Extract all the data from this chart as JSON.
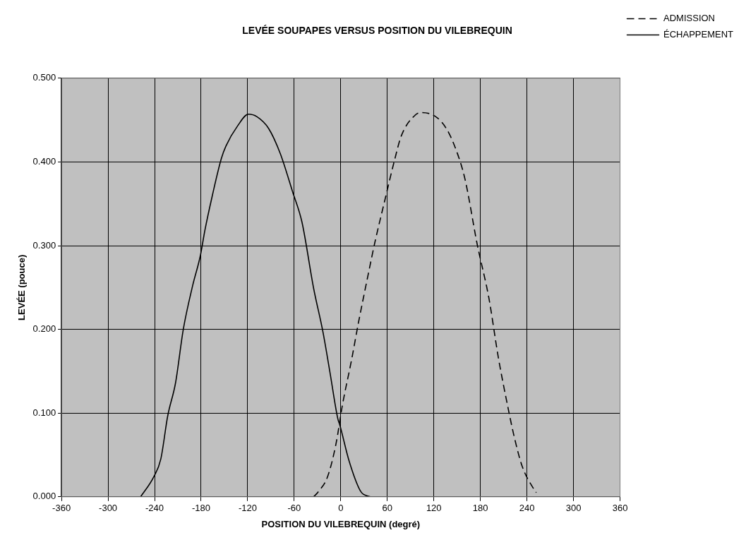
{
  "chart_data": {
    "type": "line",
    "title": "LEVÉE SOUPAPES VERSUS POSITION DU VILEBREQUIN",
    "xlabel": "POSITION DU VILEBREQUIN (degré)",
    "ylabel": "LEVÉE (pouce)",
    "xlim": [
      -360,
      360
    ],
    "xticks": [
      -360,
      -300,
      -240,
      -180,
      -120,
      -60,
      0,
      60,
      120,
      180,
      240,
      300,
      360
    ],
    "ylim": [
      0,
      0.5
    ],
    "yticks": [
      {
        "value": 0,
        "label": "0.000"
      },
      {
        "value": 0.1,
        "label": "0.100"
      },
      {
        "value": 0.2,
        "label": "0.200"
      },
      {
        "value": 0.3,
        "label": "0.300"
      },
      {
        "value": 0.4,
        "label": "0.400"
      },
      {
        "value": 0.5,
        "label": "0.500"
      }
    ],
    "grid": true,
    "legend": "right",
    "marker": "none",
    "series": [
      {
        "name": "ADMISSION",
        "color": "#000000",
        "line_style": "dashed",
        "x": [
          -35,
          -29,
          -17,
          -6,
          2,
          14,
          23,
          35,
          44,
          57,
          69,
          78,
          96,
          105,
          124,
          136,
          148,
          160,
          176,
          191,
          203,
          215,
          224,
          234,
          249,
          252
        ],
        "values": [
          0,
          0.006,
          0.024,
          0.064,
          0.109,
          0.164,
          0.209,
          0.264,
          0.304,
          0.355,
          0.401,
          0.431,
          0.456,
          0.459,
          0.453,
          0.44,
          0.416,
          0.38,
          0.301,
          0.237,
          0.167,
          0.109,
          0.07,
          0.036,
          0.009,
          0.005
        ]
      },
      {
        "name": "ÉCHAPPEMENT",
        "color": "#000000",
        "line_style": "solid",
        "x": [
          -258,
          -241,
          -232,
          -223,
          -213,
          -203,
          -191,
          -181,
          -175,
          -166,
          -154,
          -148,
          -133,
          -119,
          -108,
          -93,
          -78,
          -62,
          -50,
          -35,
          -23,
          -14,
          -4,
          -1,
          11,
          26,
          38
        ],
        "values": [
          0,
          0.024,
          0.045,
          0.097,
          0.136,
          0.2,
          0.252,
          0.288,
          0.319,
          0.358,
          0.404,
          0.419,
          0.443,
          0.457,
          0.454,
          0.44,
          0.41,
          0.364,
          0.328,
          0.249,
          0.197,
          0.149,
          0.094,
          0.085,
          0.042,
          0.006,
          0
        ]
      }
    ]
  }
}
